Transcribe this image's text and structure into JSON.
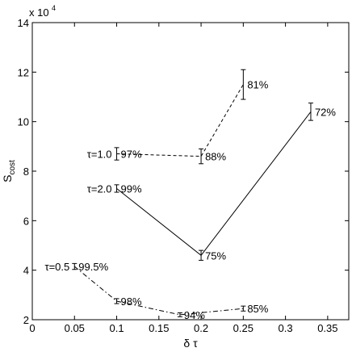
{
  "chart_data": {
    "type": "line",
    "xlabel": "δ τ",
    "ylabel": "S_cost",
    "y_multiplier_label": "x 10^4",
    "xlim": [
      0,
      0.375
    ],
    "ylim": [
      2,
      14
    ],
    "x_ticks": [
      "0",
      "0.05",
      "0.1",
      "0.15",
      "0.2",
      "0.25",
      "0.3",
      "0.35"
    ],
    "y_ticks": [
      "2",
      "4",
      "6",
      "8",
      "10",
      "12",
      "14"
    ],
    "grid": false,
    "series": [
      {
        "name": "τ=1.0",
        "style": "dashed",
        "x": [
          0.1,
          0.2,
          0.25
        ],
        "y": [
          8.7,
          8.6,
          11.5
        ],
        "err": [
          0.25,
          0.3,
          0.6
        ],
        "labels": [
          "97%",
          "88%",
          "81%"
        ]
      },
      {
        "name": "τ=2.0",
        "style": "solid",
        "x": [
          0.1,
          0.2,
          0.33
        ],
        "y": [
          7.3,
          4.6,
          10.4
        ],
        "err": [
          0.15,
          0.2,
          0.35
        ],
        "labels": [
          "99%",
          "75%",
          "72%"
        ]
      },
      {
        "name": "τ=0.5",
        "style": "dashdot",
        "x": [
          0.05,
          0.1,
          0.175,
          0.25
        ],
        "y": [
          4.15,
          2.75,
          2.2,
          2.45
        ],
        "err": [
          0.12,
          0.1,
          0.08,
          0.1
        ],
        "labels": [
          "99.5%",
          "98%",
          "94%",
          "85%"
        ]
      }
    ]
  }
}
